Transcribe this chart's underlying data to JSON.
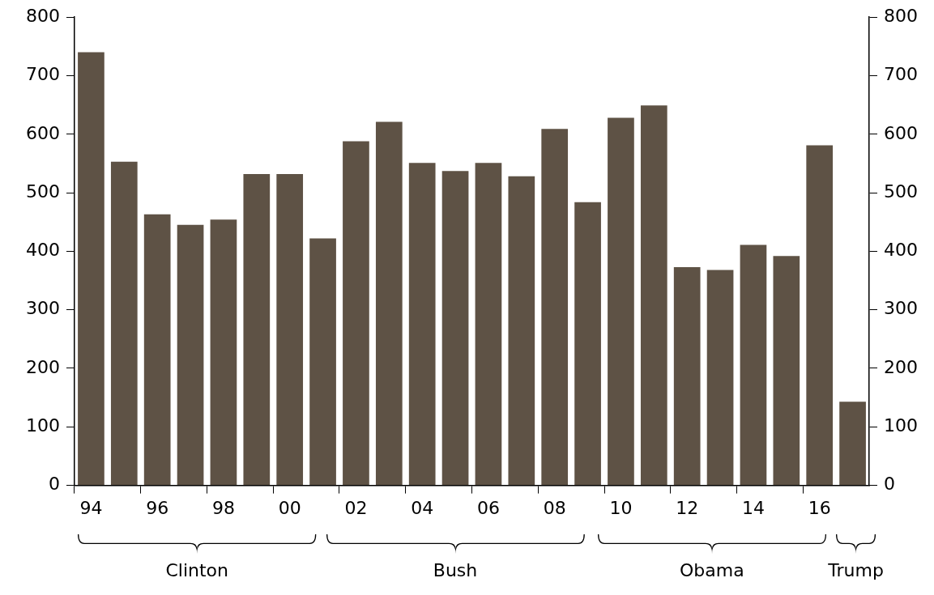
{
  "chart_data": {
    "type": "bar",
    "categories": [
      "94",
      null,
      "96",
      null,
      "98",
      null,
      "00",
      null,
      "02",
      null,
      "04",
      null,
      "06",
      null,
      "08",
      null,
      "10",
      null,
      "12",
      null,
      "14",
      null,
      "16",
      null
    ],
    "values": [
      740,
      553,
      463,
      445,
      454,
      532,
      532,
      422,
      588,
      621,
      551,
      537,
      551,
      528,
      609,
      484,
      628,
      649,
      373,
      368,
      411,
      392,
      581,
      143
    ],
    "color": "#5e5245",
    "ylim": [
      0,
      800
    ],
    "yticks": [
      0,
      100,
      200,
      300,
      400,
      500,
      600,
      700,
      800
    ],
    "y2lim": [
      0,
      800
    ],
    "y2ticks": [
      0,
      100,
      200,
      300,
      400,
      500,
      600,
      700,
      800
    ],
    "grid": false,
    "legend": false,
    "annotations": [
      "Clinton",
      "Bush",
      "Obama",
      "Trump"
    ]
  }
}
